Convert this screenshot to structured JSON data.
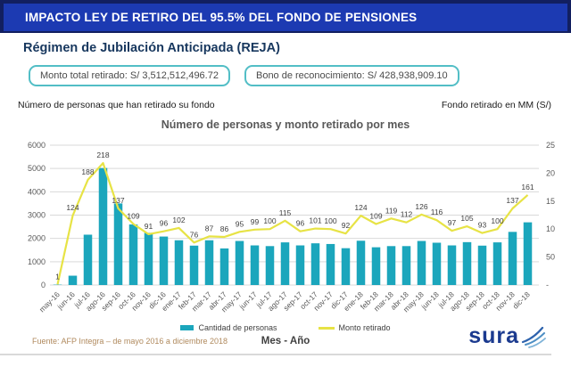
{
  "header": {
    "title": "IMPACTO LEY DE RETIRO DEL 95.5% DEL FONDO DE PENSIONES"
  },
  "subtitle": "Régimen de Jubilación Anticipada (REJA)",
  "info_boxes": {
    "total": "Monto total retirado: S/ 3,512,512,496.72",
    "bono": "Bono de reconocimiento: S/ 428,938,909.10"
  },
  "axis_captions": {
    "left": "Número de personas que han retirado su fondo",
    "right": "Fondo retirado en MM (S/)"
  },
  "chart_data": {
    "type": "bar",
    "title": "Número de personas y monto retirado por mes",
    "xlabel": "Mes - Año",
    "grid": true,
    "legend_position": "bottom",
    "categories": [
      "may-16",
      "jun-16",
      "jul-16",
      "ago-16",
      "sep-16",
      "oct-16",
      "nov-16",
      "dic-16",
      "ene-17",
      "feb-17",
      "mar-17",
      "abr-17",
      "may-17",
      "jun-17",
      "jul-17",
      "ago-17",
      "sep-17",
      "oct-17",
      "nov-17",
      "dic-17",
      "ene-18",
      "feb-18",
      "mar-18",
      "abr-18",
      "may-18",
      "jun-18",
      "jul-18",
      "ago-18",
      "sep-18",
      "oct-18",
      "nov-18",
      "dic-18"
    ],
    "series": [
      {
        "name": "Cantidad de personas",
        "type": "bar",
        "axis": "left",
        "color": "#1ba6bc",
        "values": [
          15,
          400,
          2160,
          5020,
          3500,
          2600,
          2240,
          2080,
          1920,
          1690,
          1920,
          1570,
          1890,
          1700,
          1670,
          1830,
          1700,
          1790,
          1760,
          1580,
          1900,
          1620,
          1670,
          1670,
          1890,
          1815,
          1700,
          1840,
          1690,
          1830,
          2280,
          2690
        ]
      },
      {
        "name": "Monto retirado",
        "type": "line",
        "axis": "right",
        "color": "#e7e345",
        "values": [
          1,
          124,
          188,
          218,
          137,
          109,
          91,
          96,
          102,
          76,
          87,
          86,
          95,
          99,
          100,
          115,
          96,
          101,
          100,
          92,
          124,
          109,
          119,
          112,
          126,
          116,
          97,
          105,
          93,
          100,
          137,
          161
        ]
      }
    ],
    "left_axis": {
      "min": 0,
      "max": 6000,
      "step": 1000,
      "ticks": [
        "6000",
        "5000",
        "4000",
        "3000",
        "2000",
        "1000",
        "0"
      ]
    },
    "right_axis": {
      "min": 0,
      "max": 250,
      "step": 50,
      "ticks": [
        "250",
        "200",
        "150",
        "100",
        "50",
        "-"
      ]
    }
  },
  "footer": {
    "source": "Fuente:  AFP Integra – de mayo 2016 a diciembre 2018",
    "logo_text": "sura"
  },
  "colors": {
    "header_bar": "#1c3ab2",
    "header_frame": "#121f60",
    "box_border": "#52bec6",
    "subtitle": "#17375e",
    "bar": "#1ba6bc",
    "line": "#e7e345",
    "grid": "#d9d9d9",
    "tick_text": "#595959",
    "data_label": "#3f3f3f",
    "source_text": "#b08a5e",
    "logo_blue": "#1b3a8f"
  }
}
